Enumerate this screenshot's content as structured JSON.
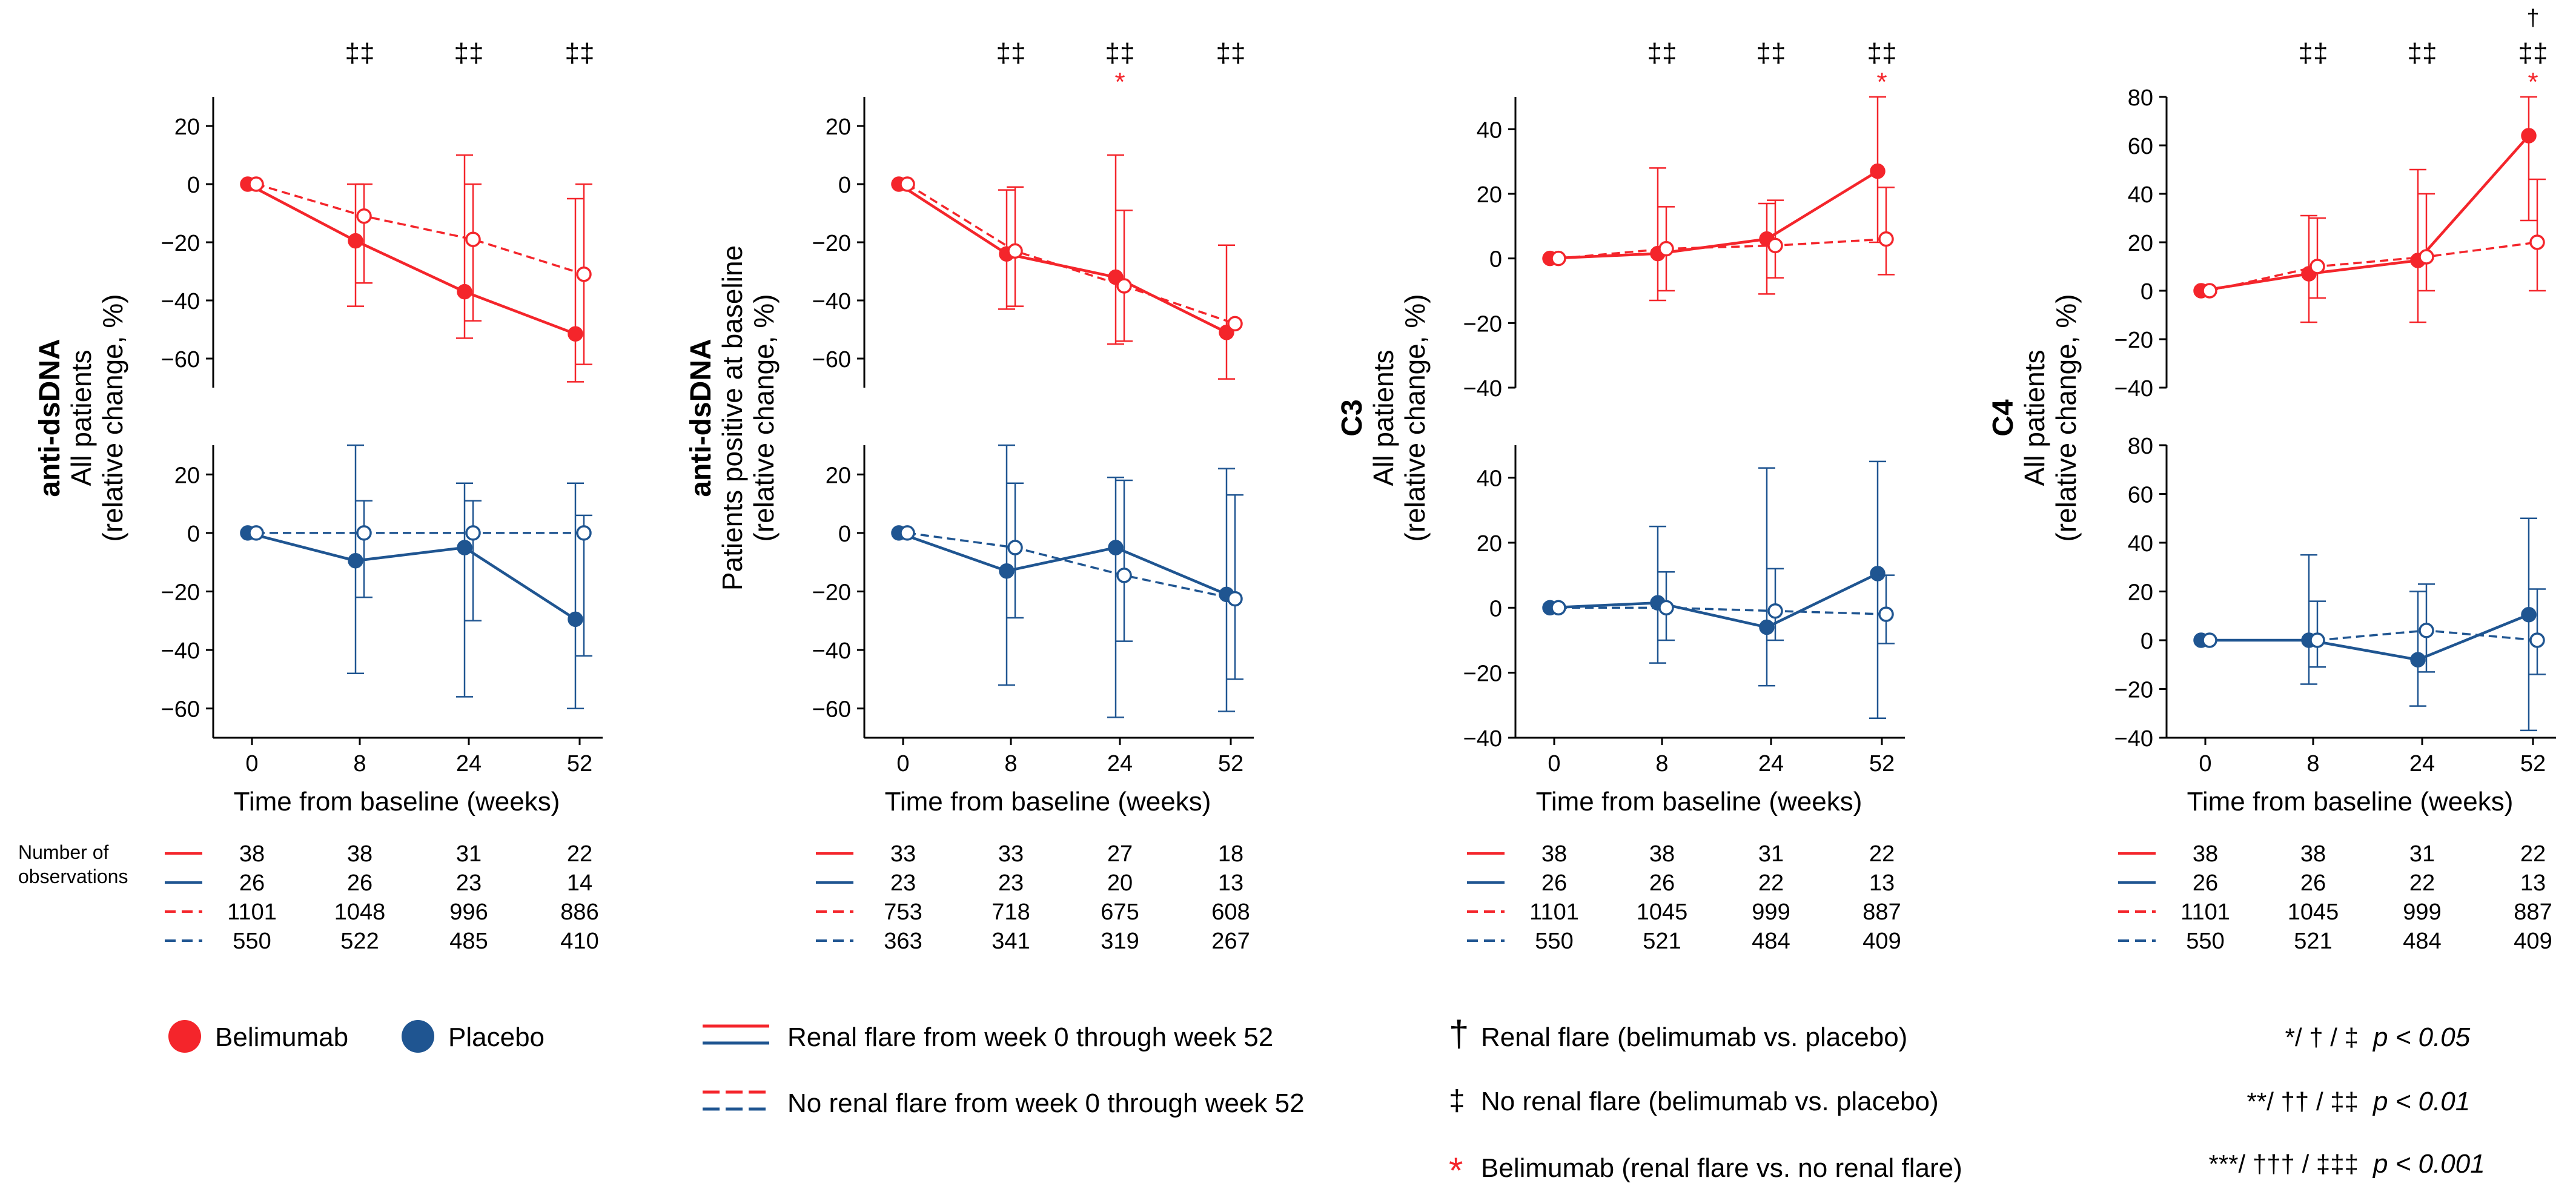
{
  "colors": {
    "belimumab": "#f4252b",
    "placebo": "#1f5591",
    "text": "#000000"
  },
  "chart_data": {
    "type": "line",
    "x": [
      0,
      8,
      24,
      52
    ],
    "xlabel": "Time from baseline (weeks)",
    "obs_label": [
      "Number of",
      "observations"
    ],
    "panels": [
      {
        "title": "anti-dsDNA",
        "ylabel_lines": [
          "All patients",
          "(relative change, %)"
        ],
        "top": {
          "ylim": [
            -70,
            30
          ],
          "yticks": [
            20,
            0,
            -20,
            -40,
            -60
          ],
          "series": [
            {
              "name": "Belimumab, renal flare",
              "arm": "belimumab",
              "flare": true,
              "values": [
                0,
                -19.5,
                -37,
                -51.5
              ],
              "upper": [
                0,
                0,
                10,
                -5
              ],
              "lower": [
                0,
                -42,
                -53,
                -68
              ]
            },
            {
              "name": "Belimumab, no renal flare",
              "arm": "belimumab",
              "flare": false,
              "values": [
                0,
                -11,
                -19,
                -31
              ],
              "upper": [
                0,
                0,
                0,
                0
              ],
              "lower": [
                0,
                -34,
                -47,
                -62
              ]
            }
          ]
        },
        "bottom": {
          "ylim": [
            -70,
            30
          ],
          "yticks": [
            20,
            0,
            -20,
            -40,
            -60
          ],
          "series": [
            {
              "name": "Placebo, renal flare",
              "arm": "placebo",
              "flare": true,
              "values": [
                0,
                -9.5,
                -5,
                -29.5
              ],
              "upper": [
                0,
                30,
                17,
                17
              ],
              "lower": [
                0,
                -48,
                -56,
                -60
              ]
            },
            {
              "name": "Placebo, no renal flare",
              "arm": "placebo",
              "flare": false,
              "values": [
                0,
                0,
                0,
                0
              ],
              "upper": [
                0,
                11,
                11,
                6
              ],
              "lower": [
                0,
                -22,
                -30,
                -42
              ]
            }
          ]
        },
        "top_marks": [
          "‡‡",
          "‡‡",
          "‡‡"
        ],
        "top_marks_extra": [],
        "obs_rows": [
          [
            "38",
            "38",
            "31",
            "22"
          ],
          [
            "26",
            "26",
            "23",
            "14"
          ],
          [
            "1101",
            "1048",
            "996",
            "886"
          ],
          [
            "550",
            "522",
            "485",
            "410"
          ]
        ]
      },
      {
        "title": "anti-dsDNA",
        "ylabel_lines": [
          "Patients positive at baseline",
          "(relative change, %)"
        ],
        "top": {
          "ylim": [
            -70,
            30
          ],
          "yticks": [
            20,
            0,
            -20,
            -40,
            -60
          ],
          "series": [
            {
              "name": "Belimumab, renal flare",
              "arm": "belimumab",
              "flare": true,
              "values": [
                0,
                -24,
                -32,
                -51
              ],
              "upper": [
                0,
                -2,
                10,
                -21
              ],
              "lower": [
                0,
                -43,
                -55,
                -67
              ]
            },
            {
              "name": "Belimumab, no renal flare",
              "arm": "belimumab",
              "flare": false,
              "values": [
                0,
                -23,
                -35,
                -48
              ],
              "upper": [
                0,
                -1,
                -9,
                -48
              ],
              "lower": [
                0,
                -42,
                -54,
                -48
              ]
            }
          ]
        },
        "bottom": {
          "ylim": [
            -70,
            30
          ],
          "yticks": [
            20,
            0,
            -20,
            -40,
            -60
          ],
          "series": [
            {
              "name": "Placebo, renal flare",
              "arm": "placebo",
              "flare": true,
              "values": [
                0,
                -13,
                -5,
                -21
              ],
              "upper": [
                0,
                30,
                19,
                22
              ],
              "lower": [
                0,
                -52,
                -63,
                -61
              ]
            },
            {
              "name": "Placebo, no renal flare",
              "arm": "placebo",
              "flare": false,
              "values": [
                0,
                -5,
                -14.5,
                -22.5
              ],
              "upper": [
                0,
                17,
                18,
                13
              ],
              "lower": [
                0,
                -29,
                -37,
                -50
              ]
            }
          ]
        },
        "top_marks": [
          "‡‡",
          "‡‡",
          "‡‡"
        ],
        "top_marks_extra": [
          {
            "x": 24,
            "text": "*",
            "color": "belimumab"
          }
        ],
        "obs_rows": [
          [
            "33",
            "33",
            "27",
            "18"
          ],
          [
            "23",
            "23",
            "20",
            "13"
          ],
          [
            "753",
            "718",
            "675",
            "608"
          ],
          [
            "363",
            "341",
            "319",
            "267"
          ]
        ]
      },
      {
        "title": "C3",
        "ylabel_lines": [
          "All patients",
          "(relative change, %)"
        ],
        "top": {
          "ylim": [
            -40,
            50
          ],
          "yticks": [
            40,
            20,
            0,
            -20,
            -40
          ],
          "series": [
            {
              "name": "Belimumab, renal flare",
              "arm": "belimumab",
              "flare": true,
              "values": [
                0,
                1.5,
                6,
                27
              ],
              "upper": [
                0,
                28,
                17,
                50
              ],
              "lower": [
                0,
                -13,
                -11,
                5
              ]
            },
            {
              "name": "Belimumab, no renal flare",
              "arm": "belimumab",
              "flare": false,
              "values": [
                0,
                3,
                4,
                6
              ],
              "upper": [
                0,
                16,
                18,
                22
              ],
              "lower": [
                0,
                -10,
                -6,
                -5
              ]
            }
          ]
        },
        "bottom": {
          "ylim": [
            -40,
            50
          ],
          "yticks": [
            40,
            20,
            0,
            -20,
            -40
          ],
          "series": [
            {
              "name": "Placebo, renal flare",
              "arm": "placebo",
              "flare": true,
              "values": [
                0,
                1.5,
                -6,
                10.5
              ],
              "upper": [
                0,
                25,
                43,
                45
              ],
              "lower": [
                0,
                -17,
                -24,
                -34
              ]
            },
            {
              "name": "Placebo, no renal flare",
              "arm": "placebo",
              "flare": false,
              "values": [
                0,
                0,
                -1,
                -2
              ],
              "upper": [
                0,
                11,
                12,
                10
              ],
              "lower": [
                0,
                -10,
                -10,
                -11
              ]
            }
          ]
        },
        "top_marks": [
          "‡‡",
          "‡‡",
          "‡‡"
        ],
        "top_marks_extra": [
          {
            "x": 52,
            "text": "*",
            "color": "belimumab"
          }
        ],
        "obs_rows": [
          [
            "38",
            "38",
            "31",
            "22"
          ],
          [
            "26",
            "26",
            "22",
            "13"
          ],
          [
            "1101",
            "1045",
            "999",
            "887"
          ],
          [
            "550",
            "521",
            "484",
            "409"
          ]
        ]
      },
      {
        "title": "C4",
        "ylabel_lines": [
          "All patients",
          "(relative change, %)"
        ],
        "top": {
          "ylim": [
            -40,
            80
          ],
          "yticks": [
            80,
            60,
            40,
            20,
            0,
            -20,
            -40
          ],
          "series": [
            {
              "name": "Belimumab, renal flare",
              "arm": "belimumab",
              "flare": true,
              "values": [
                0,
                7,
                12.5,
                64
              ],
              "upper": [
                0,
                31,
                50,
                80
              ],
              "lower": [
                0,
                -13,
                -13,
                29
              ]
            },
            {
              "name": "Belimumab, no renal flare",
              "arm": "belimumab",
              "flare": false,
              "values": [
                0,
                10,
                14,
                20
              ],
              "upper": [
                0,
                30,
                40,
                46
              ],
              "lower": [
                0,
                -3,
                0,
                0
              ]
            }
          ]
        },
        "bottom": {
          "ylim": [
            -40,
            80
          ],
          "yticks": [
            80,
            60,
            40,
            20,
            0,
            -20,
            -40
          ],
          "series": [
            {
              "name": "Placebo, renal flare",
              "arm": "placebo",
              "flare": true,
              "values": [
                0,
                0,
                -8,
                10.5
              ],
              "upper": [
                0,
                35,
                20,
                50
              ],
              "lower": [
                0,
                -18,
                -27,
                -37
              ]
            },
            {
              "name": "Placebo, no renal flare",
              "arm": "placebo",
              "flare": false,
              "values": [
                0,
                0,
                4,
                0
              ],
              "upper": [
                0,
                16,
                23,
                21
              ],
              "lower": [
                0,
                -11,
                -13,
                -14
              ]
            }
          ]
        },
        "top_marks": [
          "‡‡",
          "‡‡",
          "‡‡"
        ],
        "top_marks_extra": [
          {
            "x": 52,
            "text": "*",
            "color": "belimumab"
          },
          {
            "x": 52,
            "text": "†",
            "color": "text"
          }
        ],
        "obs_rows": [
          [
            "38",
            "38",
            "31",
            "22"
          ],
          [
            "26",
            "26",
            "22",
            "13"
          ],
          [
            "1101",
            "1045",
            "999",
            "887"
          ],
          [
            "550",
            "521",
            "484",
            "409"
          ]
        ]
      }
    ]
  },
  "legend": {
    "belimumab": "Belimumab",
    "placebo": "Placebo",
    "solid": "Renal flare from week 0 through week 52",
    "dashed": "No renal flare from week 0 through week 52",
    "dagger_sym": "†",
    "dagger_text": "Renal flare (belimumab vs. placebo)",
    "ddagger_sym": "‡",
    "ddagger_text": "No renal flare (belimumab vs. placebo)",
    "star_sym": "*",
    "star_text": "Belimumab (renal flare vs. no renal flare)",
    "sig": [
      {
        "symbols": "*/ † / ‡",
        "p": "p < 0.05"
      },
      {
        "symbols": "**/ †† / ‡‡",
        "p": "p < 0.01"
      },
      {
        "symbols": "***/ ††† / ‡‡‡",
        "p": "p < 0.001"
      }
    ]
  }
}
